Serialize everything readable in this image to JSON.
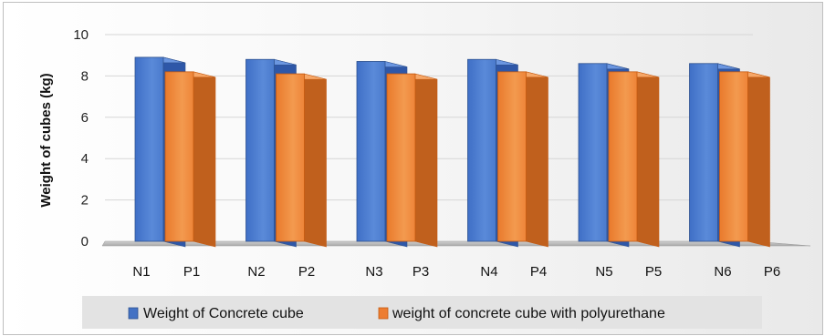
{
  "chart_data": {
    "type": "bar",
    "title": "",
    "xlabel": "",
    "ylabel": "Weight of cubes (kg)",
    "ylim": [
      0,
      10
    ],
    "yticks": [
      "0",
      "2",
      "4",
      "6",
      "8",
      "10"
    ],
    "grid": true,
    "legend_position": "bottom",
    "groups": [
      {
        "labels": [
          "N1",
          "P1"
        ],
        "values": [
          8.9,
          8.2
        ]
      },
      {
        "labels": [
          "N2",
          "P2"
        ],
        "values": [
          8.8,
          8.1
        ]
      },
      {
        "labels": [
          "N3",
          "P3"
        ],
        "values": [
          8.7,
          8.1
        ]
      },
      {
        "labels": [
          "N4",
          "P4"
        ],
        "values": [
          8.8,
          8.2
        ]
      },
      {
        "labels": [
          "N5",
          "P5"
        ],
        "values": [
          8.6,
          8.2
        ]
      },
      {
        "labels": [
          "N6",
          "P6"
        ],
        "values": [
          8.6,
          8.2
        ]
      }
    ],
    "series": [
      {
        "name": "Weight of Concrete cube",
        "color": "#4472c4"
      },
      {
        "name": "weight of concrete cube with polyurethane",
        "color": "#ed7d31"
      }
    ]
  }
}
